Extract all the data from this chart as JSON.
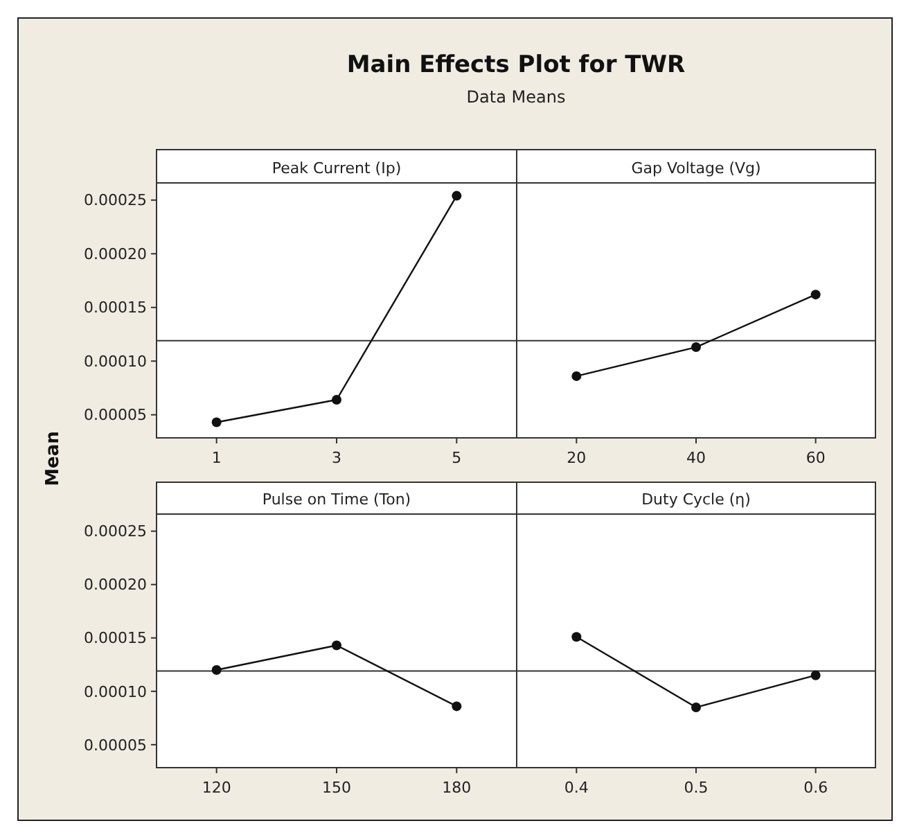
{
  "chart_data": [
    {
      "type": "line",
      "title": "Main Effects Plot for TWR",
      "subtitle": "Data Means",
      "ylabel": "Mean",
      "xlabel": "Peak Current (Ip)",
      "categories": [
        "1",
        "3",
        "5"
      ],
      "values": [
        4.3e-05,
        6.4e-05,
        0.000254
      ],
      "color": "#111111",
      "marker": "circle",
      "ylim": [
        2.85e-05,
        0.000266
      ],
      "yticks": [
        {
          "value": 5e-05,
          "label": "0.00005"
        },
        {
          "value": 0.0001,
          "label": "0.00010"
        },
        {
          "value": 0.00015,
          "label": "0.00015"
        },
        {
          "value": 0.0002,
          "label": "0.00020"
        },
        {
          "value": 0.00025,
          "label": "0.00025"
        }
      ],
      "ref_lines": [
        {
          "axis": "y",
          "value": 0.000119,
          "color": "#333333"
        }
      ]
    },
    {
      "type": "line",
      "xlabel": "Gap Voltage (Vg)",
      "categories": [
        "20",
        "40",
        "60"
      ],
      "values": [
        8.6e-05,
        0.000113,
        0.000162
      ],
      "color": "#111111",
      "marker": "circle",
      "ylim": [
        2.85e-05,
        0.000266
      ],
      "tick_labels": "x",
      "ref_lines": [
        {
          "axis": "y",
          "value": 0.000119,
          "color": "#333333"
        }
      ]
    },
    {
      "type": "line",
      "xlabel": "Pulse on Time (Ton)",
      "categories": [
        "120",
        "150",
        "180"
      ],
      "values": [
        0.00012,
        0.000143,
        8.6e-05
      ],
      "color": "#111111",
      "marker": "circle",
      "ylim": [
        2.85e-05,
        0.000266
      ],
      "yticks": [
        {
          "value": 5e-05,
          "label": "0.00005"
        },
        {
          "value": 0.0001,
          "label": "0.00010"
        },
        {
          "value": 0.00015,
          "label": "0.00015"
        },
        {
          "value": 0.0002,
          "label": "0.00020"
        },
        {
          "value": 0.00025,
          "label": "0.00025"
        }
      ],
      "ref_lines": [
        {
          "axis": "y",
          "value": 0.000119,
          "color": "#333333"
        }
      ]
    },
    {
      "type": "line",
      "xlabel": "Duty Cycle (η)",
      "categories": [
        "0.4",
        "0.5",
        "0.6"
      ],
      "values": [
        0.000151,
        8.5e-05,
        0.000115
      ],
      "color": "#111111",
      "marker": "circle",
      "ylim": [
        2.85e-05,
        0.000266
      ],
      "tick_labels": "x",
      "ref_lines": [
        {
          "axis": "y",
          "value": 0.000119,
          "color": "#333333"
        }
      ]
    }
  ]
}
